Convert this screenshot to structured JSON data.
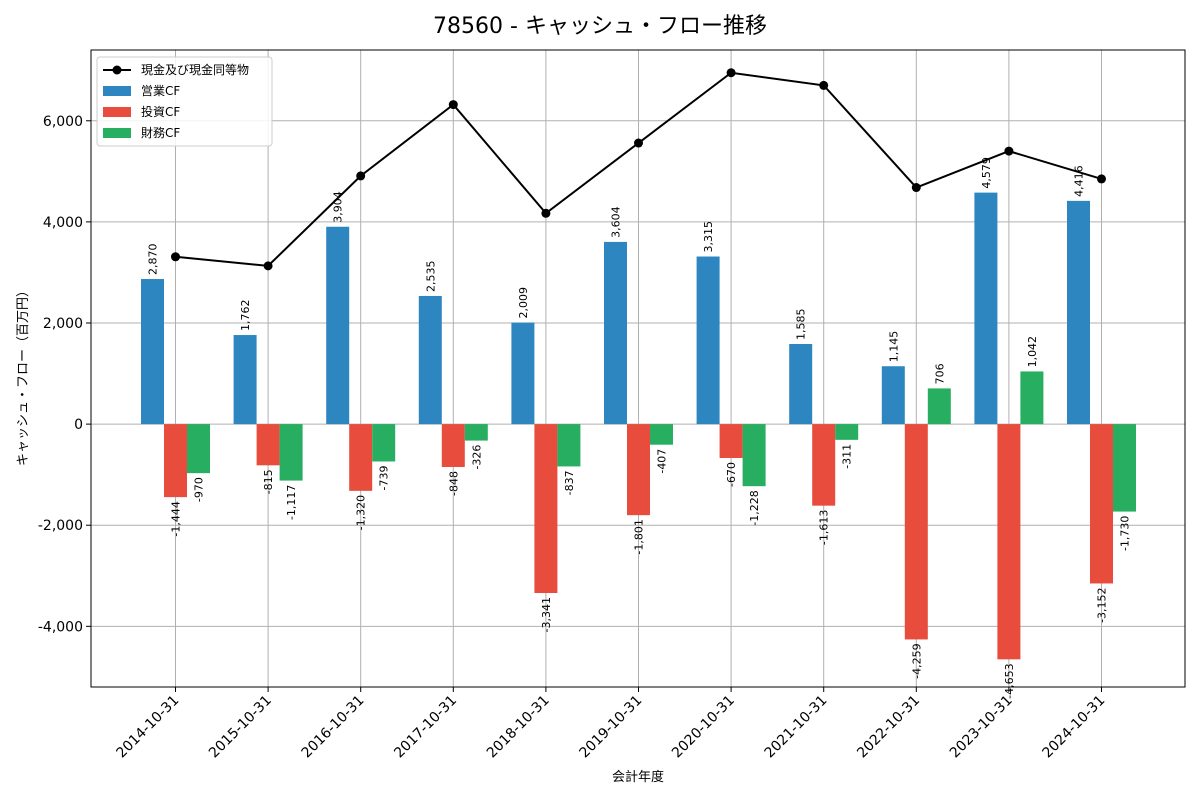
{
  "chart_data": {
    "type": "bar",
    "title": "78560 - キャッシュ・フロー推移",
    "xlabel": "会計年度",
    "ylabel": "キャッシュ・フロー（百万円）",
    "ylim": [
      -5200,
      7400
    ],
    "yticks": [
      -4000,
      -2000,
      0,
      2000,
      4000,
      6000
    ],
    "ytick_labels": [
      "-4,000",
      "-2,000",
      "0",
      "2,000",
      "4,000",
      "6,000"
    ],
    "grid": true,
    "legend_position": "top-left",
    "categories": [
      "2014-10-31",
      "2015-10-31",
      "2016-10-31",
      "2017-10-31",
      "2018-10-31",
      "2019-10-31",
      "2020-10-31",
      "2021-10-31",
      "2022-10-31",
      "2023-10-31",
      "2024-10-31"
    ],
    "series": [
      {
        "name": "営業CF",
        "kind": "bar",
        "color": "#2e86c1",
        "values": [
          2870,
          1762,
          3904,
          2535,
          2009,
          3604,
          3315,
          1585,
          1145,
          4579,
          4416
        ],
        "labels": [
          "2,870",
          "1,762",
          "3,904",
          "2,535",
          "2,009",
          "3,604",
          "3,315",
          "1,585",
          "1,145",
          "4,579",
          "4,416"
        ]
      },
      {
        "name": "投資CF",
        "kind": "bar",
        "color": "#e74c3c",
        "values": [
          -1444,
          -815,
          -1320,
          -848,
          -3341,
          -1801,
          -670,
          -1613,
          -4259,
          -4653,
          -3152
        ],
        "labels": [
          "-1,444",
          "-815",
          "-1,320",
          "-848",
          "-3,341",
          "-1,801",
          "-670",
          "-1,613",
          "-4,259",
          "-4,653",
          "-3,152"
        ]
      },
      {
        "name": "財務CF",
        "kind": "bar",
        "color": "#27ae60",
        "values": [
          -970,
          -1117,
          -739,
          -326,
          -837,
          -407,
          -1228,
          -311,
          706,
          1042,
          -1730
        ],
        "labels": [
          "-970",
          "-1,117",
          "-739",
          "-326",
          "-837",
          "-407",
          "-1,228",
          "-311",
          "706",
          "1,042",
          "-1,730"
        ]
      },
      {
        "name": "現金及び現金同等物",
        "kind": "line",
        "color": "#000000",
        "values": [
          3310,
          3130,
          4910,
          6320,
          4170,
          5560,
          6950,
          6700,
          4680,
          5400,
          4850
        ]
      }
    ]
  }
}
